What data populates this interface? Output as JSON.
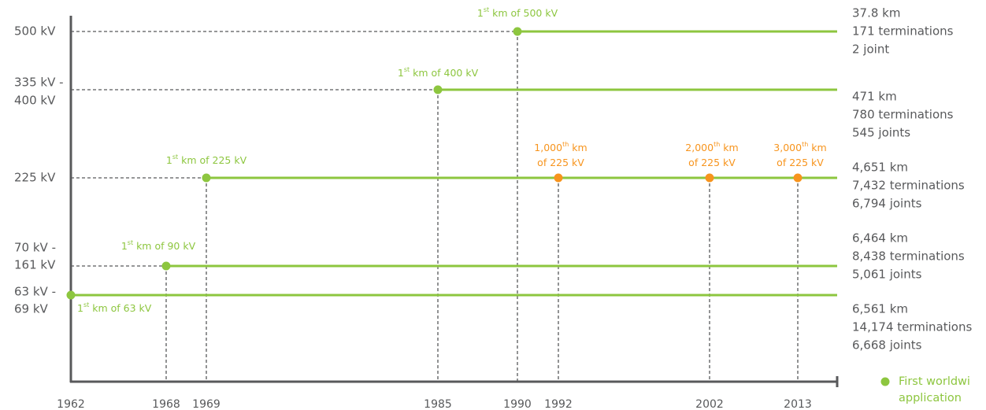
{
  "levels": [
    [
      "500 kV"
    ],
    [
      "335 kV -",
      "400 kV"
    ],
    [
      "225 kV"
    ],
    [
      "70 kV -",
      "161 kV"
    ],
    [
      "63 kV -",
      "69 kV"
    ]
  ],
  "milestones": [
    {
      "label": [
        {
          "pre": "1",
          "sup": "st",
          "post": " km of 500 kV"
        }
      ]
    },
    {
      "label": [
        {
          "pre": "1",
          "sup": "st",
          "post": " km of 400 kV"
        }
      ]
    },
    {
      "label": [
        {
          "pre": "1",
          "sup": "st",
          "post": " km of 225 kV"
        }
      ]
    },
    {
      "label": [
        {
          "pre": "1,000",
          "sup": "th",
          "post": " km"
        },
        {
          "pre": "of 225 kV"
        }
      ]
    },
    {
      "label": [
        {
          "pre": "2,000",
          "sup": "th",
          "post": " km"
        },
        {
          "pre": "of 225 kV"
        }
      ]
    },
    {
      "label": [
        {
          "pre": "3,000",
          "sup": "th",
          "post": " km"
        },
        {
          "pre": "of 225 kV"
        }
      ]
    },
    {
      "label": [
        {
          "pre": "1",
          "sup": "st",
          "post": " km of 90 kV"
        }
      ]
    },
    {
      "label": [
        {
          "pre": "1",
          "sup": "st",
          "post": " km of 63 kV"
        }
      ]
    }
  ],
  "years": [
    "1962",
    "1968",
    "1969",
    "1985",
    "1990",
    "1992",
    "2002",
    "2013"
  ],
  "stats": [
    [
      "37.8 km",
      "171 terminations",
      "2 joint"
    ],
    [
      "471 km",
      "780 terminations",
      "545 joints"
    ],
    [
      "4,651 km",
      "7,432 terminations",
      "6,794 joints"
    ],
    [
      "6,464 km",
      "8,438 terminations",
      "5,061 joints"
    ],
    [
      "6,561 km",
      "14,174 terminations",
      "6,668 joints"
    ]
  ],
  "legend": {
    "label": [
      "First worldwi",
      "application"
    ]
  }
}
